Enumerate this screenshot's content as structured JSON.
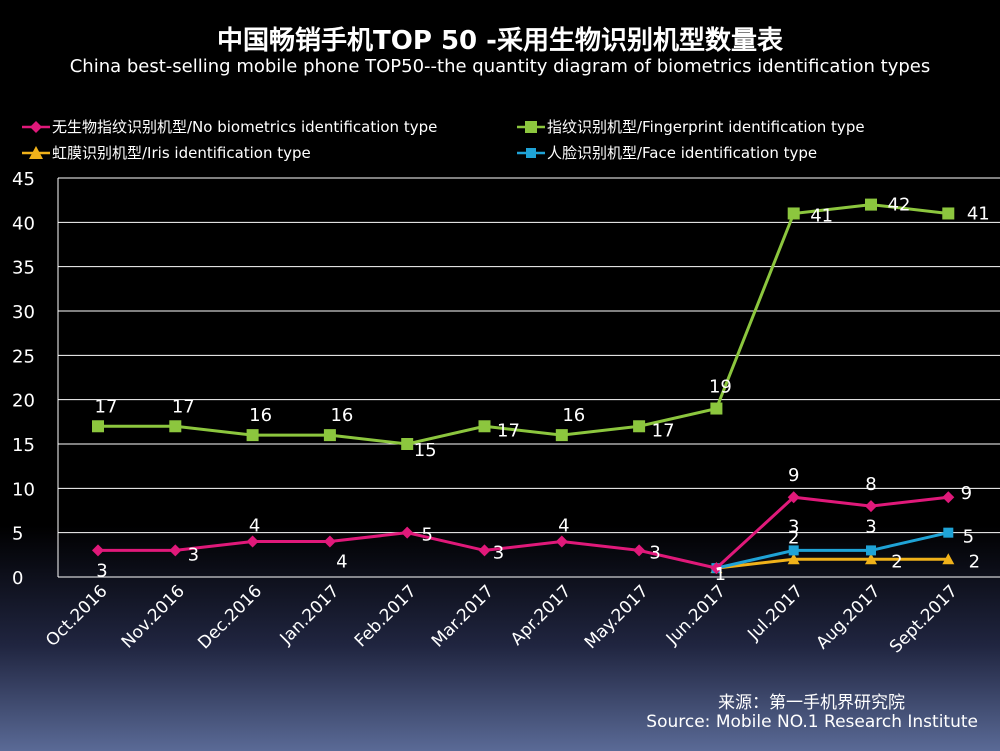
{
  "title_cn": "中国畅销手机TOP 50 -采用生物识别机型数量表",
  "title_en": "China best-selling mobile phone TOP50--the quantity diagram of biometrics identification types",
  "source_cn": "来源：第一手机界研究院",
  "source_en": "Source: Mobile NO.1 Research Institute",
  "chart_data": {
    "type": "line",
    "categories": [
      "Oct.2016",
      "Nov.2016",
      "Dec.2016",
      "Jan.2017",
      "Feb.2017",
      "Mar.2017",
      "Apr.2017",
      "May.2017",
      "Jun.2017",
      "Jul.2017",
      "Aug.2017",
      "Sept.2017"
    ],
    "ylim": [
      0,
      45
    ],
    "yticks": [
      "0",
      "5",
      "10",
      "15",
      "20",
      "25",
      "30",
      "35",
      "40",
      "45"
    ],
    "grid": true,
    "series": [
      {
        "name": "无生物指纹识别机型/No biometrics identification type",
        "color": "#e0197a",
        "marker": "diamond",
        "values": [
          3,
          3,
          4,
          4,
          5,
          3,
          4,
          3,
          1,
          9,
          8,
          9
        ],
        "value_labels": [
          3,
          3,
          4,
          4,
          5,
          3,
          4,
          3,
          1,
          9,
          8,
          9
        ]
      },
      {
        "name": "指纹识别机型/Fingerprint identification type",
        "color": "#8cc63e",
        "marker": "square",
        "values": [
          17,
          17,
          16,
          16,
          15,
          17,
          16,
          17,
          19,
          41,
          42,
          41
        ],
        "value_labels": [
          17,
          17,
          16,
          16,
          15,
          17,
          16,
          17,
          19,
          41,
          42,
          41
        ]
      },
      {
        "name": "虹膜识别机型/Iris identification type",
        "color": "#f0b21a",
        "marker": "triangle",
        "values": [
          null,
          null,
          null,
          null,
          null,
          null,
          null,
          null,
          1,
          2,
          2,
          2
        ],
        "value_labels": [
          null,
          null,
          null,
          null,
          null,
          null,
          null,
          null,
          null,
          2,
          2,
          2
        ]
      },
      {
        "name": "人脸识别机型/Face identification type",
        "color": "#1fa3d6",
        "marker": "square",
        "values": [
          null,
          null,
          null,
          null,
          null,
          null,
          null,
          null,
          1,
          3,
          3,
          5
        ],
        "value_labels": [
          null,
          null,
          null,
          null,
          null,
          null,
          null,
          null,
          null,
          3,
          3,
          5
        ]
      }
    ]
  }
}
